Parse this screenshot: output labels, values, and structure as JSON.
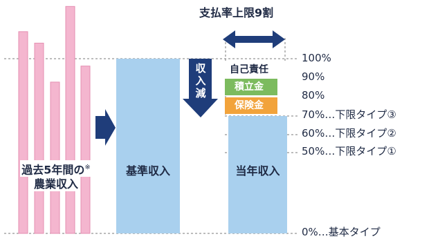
{
  "title": "支払率上限9割",
  "history": {
    "label_line1": "過去5年間の",
    "label_line2": "農業収入",
    "note_mark": "※",
    "bar_levels": [
      0.88,
      0.83,
      0.66,
      0.99,
      0.73
    ]
  },
  "standard_income": {
    "label": "基準収入"
  },
  "decrease": {
    "label": "収入減"
  },
  "current_income": {
    "label": "当年収入"
  },
  "stack": {
    "self_label": "自己責任",
    "reserve_label": "積立金",
    "insurance_label": "保険金"
  },
  "levels": [
    {
      "text": "100%"
    },
    {
      "text": "90%"
    },
    {
      "text": "80%"
    },
    {
      "text": "70%…下限タイプ③"
    },
    {
      "text": "60%…下限タイプ②"
    },
    {
      "text": "50%…下限タイプ①"
    },
    {
      "text": "0%…基本タイプ"
    }
  ],
  "colors": {
    "history_bar": "#f4b6cf",
    "history_bar_border": "#e58fb2",
    "income_bar": "#a9d0ee",
    "arrow": "#1f3d7a",
    "reserve": "#7cbb5e",
    "insurance": "#f2a33b",
    "guide": "#7a7a7a"
  }
}
